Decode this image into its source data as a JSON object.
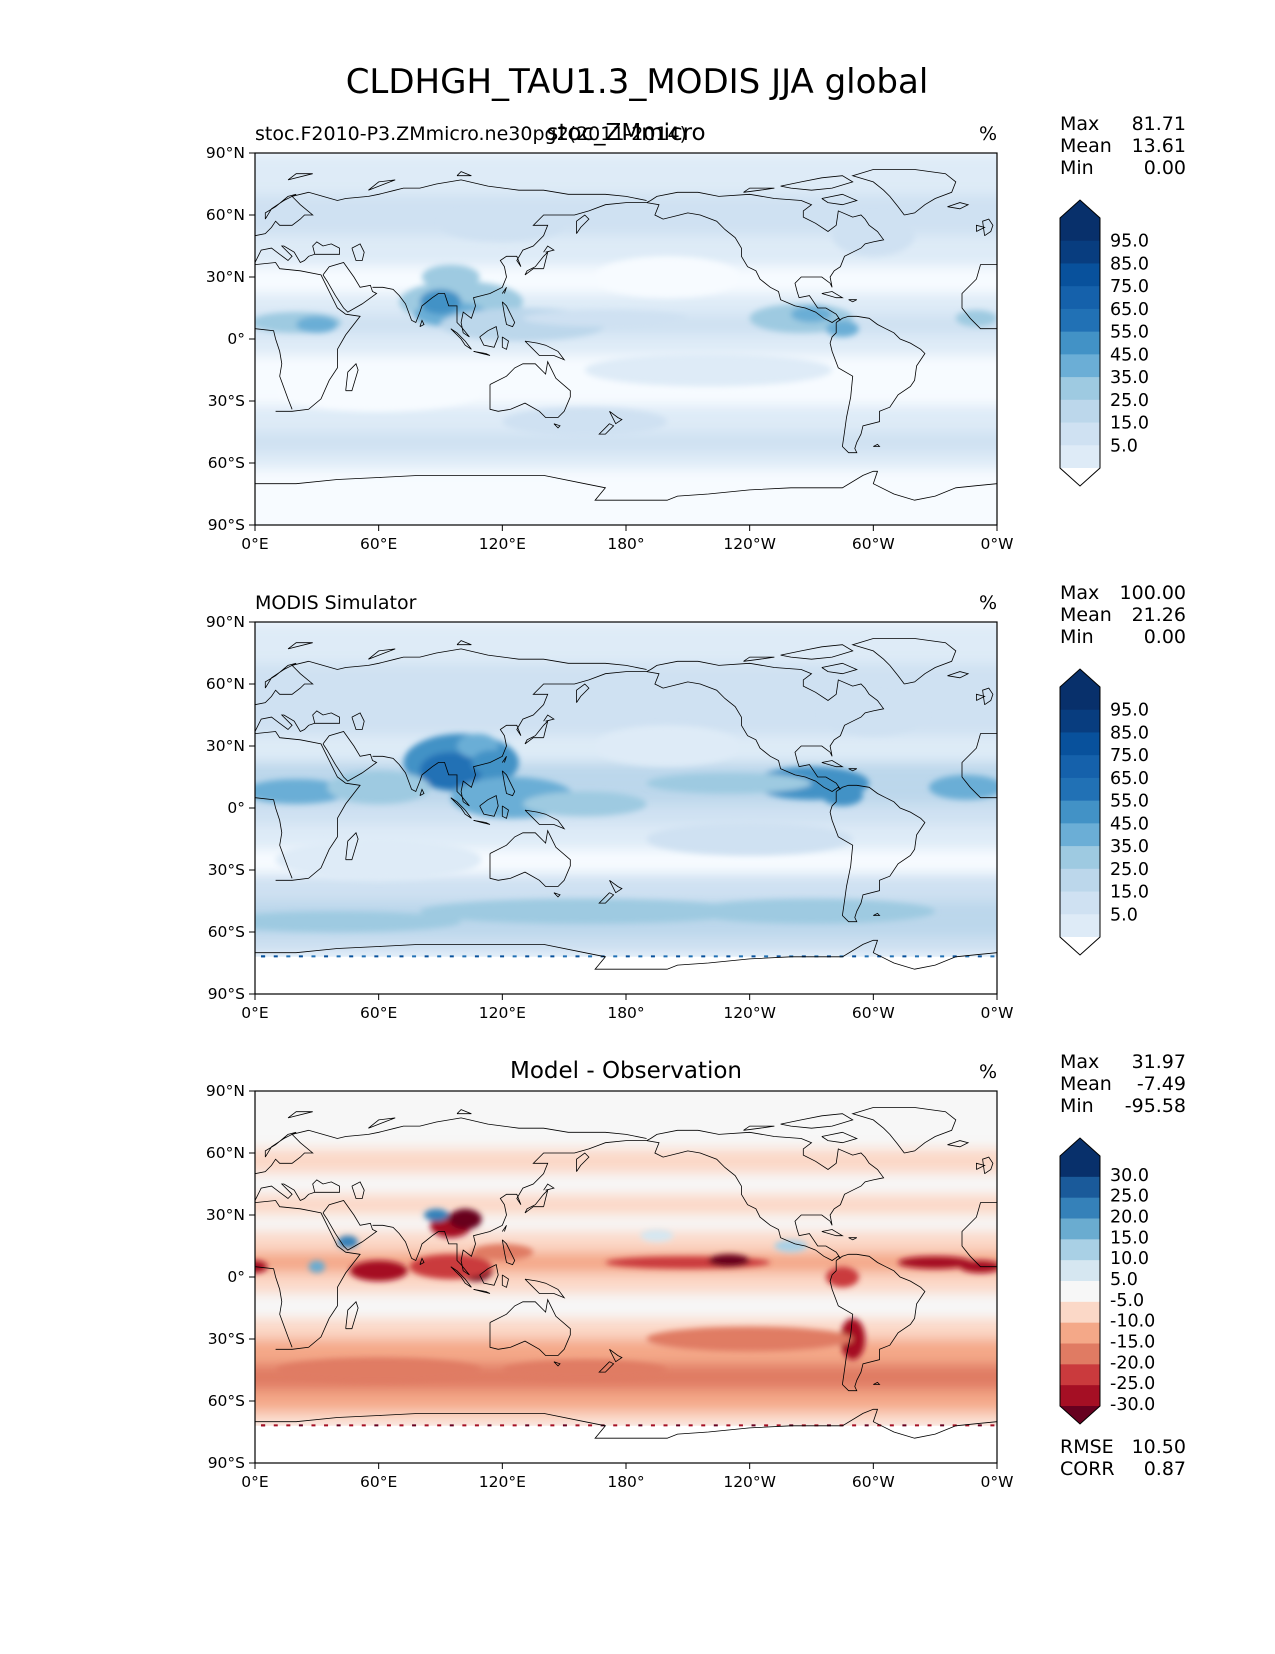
{
  "figure": {
    "suptitle": "CLDHGH_TAU1.3_MODIS JJA global"
  },
  "colors": {
    "blue_scale": [
      "#f7fbff",
      "#deebf7",
      "#cfe1f2",
      "#bcd7eb",
      "#9ecae1",
      "#6baed6",
      "#4292c6",
      "#2171b5",
      "#1561ab",
      "#08519c",
      "#083d7f",
      "#08306b"
    ],
    "diff_scale": [
      "#67001f",
      "#a50f24",
      "#ca3a3d",
      "#e07b63",
      "#f4a888",
      "#fbd8c7",
      "#f7f7f7",
      "#d6e7f1",
      "#a9d0e5",
      "#6aacd0",
      "#3581b9",
      "#1a5a9a",
      "#08306b"
    ],
    "background_field": "#f5f5f5",
    "coast": "#000000"
  },
  "panels": [
    {
      "id": "model",
      "left_title": "stoc.F2010-P3.ZMmicro.ne30pg2(2011-2014)",
      "overlay_title": "stoc_ZMmicro",
      "center_title": "",
      "units": "%",
      "stats": [
        {
          "label": "Max",
          "value": "81.71"
        },
        {
          "label": "Mean",
          "value": "13.61"
        },
        {
          "label": "Min",
          "value": "0.00"
        }
      ],
      "colorbar_ticks": [
        "95.0",
        "85.0",
        "75.0",
        "65.0",
        "55.0",
        "45.0",
        "35.0",
        "25.0",
        "15.0",
        "5.0"
      ],
      "colorbar_extend": "both",
      "extra_stats": []
    },
    {
      "id": "obs",
      "left_title": "MODIS Simulator",
      "overlay_title": "",
      "center_title": "",
      "units": "%",
      "stats": [
        {
          "label": "Max",
          "value": "100.00"
        },
        {
          "label": "Mean",
          "value": "21.26"
        },
        {
          "label": "Min",
          "value": "0.00"
        }
      ],
      "colorbar_ticks": [
        "95.0",
        "85.0",
        "75.0",
        "65.0",
        "55.0",
        "45.0",
        "35.0",
        "25.0",
        "15.0",
        "5.0"
      ],
      "colorbar_extend": "both",
      "extra_stats": []
    },
    {
      "id": "diff",
      "left_title": "",
      "overlay_title": "",
      "center_title": "Model - Observation",
      "units": "%",
      "stats": [
        {
          "label": "Max",
          "value": "31.97"
        },
        {
          "label": "Mean",
          "value": "-7.49"
        },
        {
          "label": "Min",
          "value": "-95.58"
        }
      ],
      "colorbar_ticks": [
        "30.0",
        "25.0",
        "20.0",
        "15.0",
        "10.0",
        "5.0",
        "-5.0",
        "-10.0",
        "-15.0",
        "-20.0",
        "-25.0",
        "-30.0"
      ],
      "colorbar_extend": "both",
      "extra_stats": [
        {
          "label": "RMSE",
          "value": "10.50"
        },
        {
          "label": "CORR",
          "value": "0.87"
        }
      ]
    }
  ],
  "axes": {
    "x_ticks": [
      "0°E",
      "60°E",
      "120°E",
      "180°",
      "120°W",
      "60°W",
      "0°W"
    ],
    "y_ticks": [
      "90°N",
      "60°N",
      "30°N",
      "0°",
      "30°S",
      "60°S",
      "90°S"
    ],
    "lon_range": [
      0,
      360
    ],
    "lat_range": [
      -90,
      90
    ]
  }
}
